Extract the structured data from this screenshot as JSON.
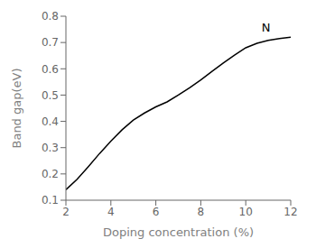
{
  "chart_data": {
    "type": "line",
    "x": [
      2,
      2.5,
      3,
      3.5,
      4,
      4.5,
      5,
      5.5,
      6,
      6.5,
      7,
      7.5,
      8,
      8.5,
      9,
      9.5,
      10,
      10.5,
      11,
      11.5,
      12
    ],
    "values": [
      0.14,
      0.18,
      0.228,
      0.278,
      0.325,
      0.368,
      0.405,
      0.432,
      0.455,
      0.474,
      0.5,
      0.528,
      0.558,
      0.59,
      0.622,
      0.652,
      0.68,
      0.697,
      0.708,
      0.715,
      0.72
    ],
    "xlabel": "Doping concentration (%)",
    "ylabel": "Band gap(eV)",
    "annotations": [
      "N"
    ],
    "xlim": [
      2,
      12
    ],
    "ylim": [
      0.1,
      0.8
    ],
    "xticks": [
      2,
      4,
      6,
      8,
      10,
      12
    ],
    "yticks": [
      0.1,
      0.2,
      0.3,
      0.4,
      0.5,
      0.6,
      0.7,
      0.8
    ],
    "color": "#000000",
    "grid": false
  }
}
